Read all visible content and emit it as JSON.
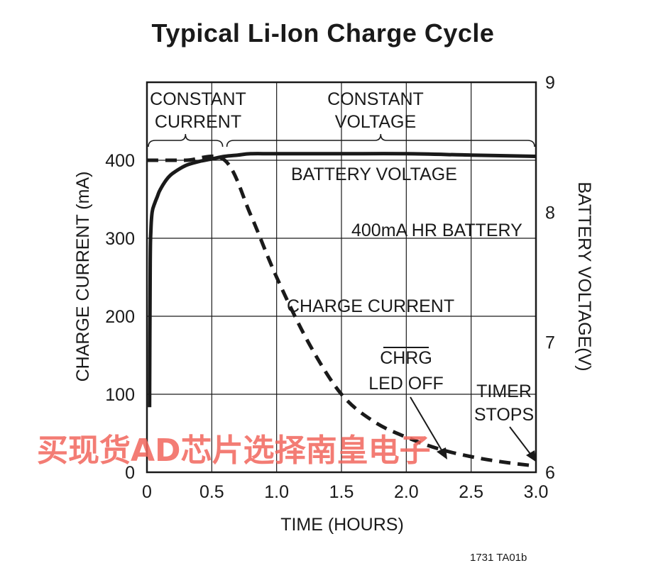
{
  "chart_data": {
    "type": "line",
    "title": "Typical Li-Ion Charge Cycle",
    "xlabel": "TIME (HOURS)",
    "ylabel_left": "CHARGE CURRENT (mA)",
    "ylabel_right": "BATTERY VOLTAGE(V)",
    "xlim": [
      0,
      3.0
    ],
    "ylim_left": [
      0,
      500
    ],
    "ylim_right": [
      6,
      9
    ],
    "x_ticks": [
      "0",
      "0.5",
      "1.0",
      "1.5",
      "2.0",
      "2.5",
      "3.0"
    ],
    "x_tick_values": [
      0,
      0.5,
      1.0,
      1.5,
      2.0,
      2.5,
      3.0
    ],
    "y_left_ticks": [
      "0",
      "100",
      "200",
      "300",
      "400"
    ],
    "y_left_tick_values": [
      0,
      100,
      200,
      300,
      400
    ],
    "y_right_ticks": [
      "6",
      "7",
      "8",
      "9"
    ],
    "y_right_tick_values": [
      6,
      7,
      8,
      9
    ],
    "grid": true,
    "series": [
      {
        "name": "BATTERY VOLTAGE",
        "axis": "right",
        "style": "solid",
        "x": [
          0.02,
          0.025,
          0.03,
          0.04,
          0.06,
          0.08,
          0.1,
          0.15,
          0.2,
          0.3,
          0.4,
          0.5,
          0.6,
          0.7,
          0.8,
          1.0,
          1.5,
          2.0,
          2.5,
          3.0
        ],
        "y": [
          6.5,
          7.6,
          7.85,
          8.0,
          8.07,
          8.12,
          8.17,
          8.25,
          8.3,
          8.36,
          8.39,
          8.41,
          8.43,
          8.44,
          8.45,
          8.45,
          8.45,
          8.45,
          8.44,
          8.43
        ]
      },
      {
        "name": "CHARGE CURRENT",
        "axis": "left",
        "style": "dashed",
        "x": [
          0.0,
          0.05,
          0.3,
          0.6,
          0.8,
          1.0,
          1.25,
          1.5,
          1.75,
          2.0,
          2.25,
          2.5,
          2.75,
          3.0
        ],
        "y": [
          400,
          400,
          400,
          400,
          330,
          250,
          165,
          100,
          65,
          45,
          30,
          20,
          13,
          8
        ]
      }
    ],
    "regions": [
      {
        "label_line1": "CONSTANT",
        "label_line2": "CURRENT",
        "x": [
          0,
          0.6
        ]
      },
      {
        "label_line1": "CONSTANT",
        "label_line2": "VOLTAGE",
        "x": [
          0.6,
          3.0
        ]
      }
    ],
    "annotations": {
      "battery_voltage": "BATTERY VOLTAGE",
      "battery_rating": "400mA HR BATTERY",
      "charge_current": "CHARGE CURRENT",
      "chrg_line1": "CHRG",
      "chrg_line2": "LED OFF",
      "timer_line1": "TIMER",
      "timer_line2": "STOPS"
    },
    "figure_code": "1731 TA01b"
  },
  "watermark": "买现货AD芯片选择南皇电子",
  "colors": {
    "ink": "#1a1a1a",
    "watermark": "#f2665c"
  }
}
